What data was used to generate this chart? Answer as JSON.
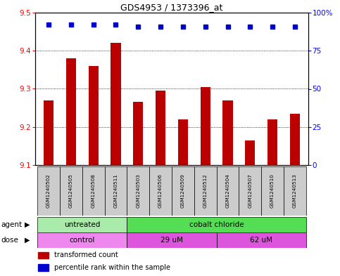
{
  "title": "GDS4953 / 1373396_at",
  "samples": [
    "GSM1240502",
    "GSM1240505",
    "GSM1240508",
    "GSM1240511",
    "GSM1240503",
    "GSM1240506",
    "GSM1240509",
    "GSM1240512",
    "GSM1240504",
    "GSM1240507",
    "GSM1240510",
    "GSM1240513"
  ],
  "bar_values": [
    9.27,
    9.38,
    9.36,
    9.42,
    9.265,
    9.295,
    9.22,
    9.305,
    9.27,
    9.165,
    9.22,
    9.235
  ],
  "percentile_values": [
    92,
    92,
    92,
    92,
    91,
    91,
    91,
    91,
    91,
    91,
    91,
    91
  ],
  "bar_color": "#bb0000",
  "percentile_color": "#0000cc",
  "ylim_left": [
    9.1,
    9.5
  ],
  "ylim_right": [
    0,
    100
  ],
  "yticks_left": [
    9.1,
    9.2,
    9.3,
    9.4,
    9.5
  ],
  "yticks_right": [
    0,
    25,
    50,
    75,
    100
  ],
  "agent_groups": [
    {
      "label": "untreated",
      "start": 0,
      "end": 4,
      "color": "#aaeaaa"
    },
    {
      "label": "cobalt chloride",
      "start": 4,
      "end": 12,
      "color": "#55dd55"
    }
  ],
  "dose_groups": [
    {
      "label": "control",
      "start": 0,
      "end": 4,
      "color": "#ee88ee"
    },
    {
      "label": "29 uM",
      "start": 4,
      "end": 8,
      "color": "#dd55dd"
    },
    {
      "label": "62 uM",
      "start": 8,
      "end": 12,
      "color": "#dd55dd"
    }
  ],
  "legend_items": [
    {
      "label": "transformed count",
      "color": "#bb0000"
    },
    {
      "label": "percentile rank within the sample",
      "color": "#0000cc"
    }
  ],
  "x_label_agent": "agent",
  "x_label_dose": "dose",
  "background_color": "#ffffff",
  "plot_bg_color": "#ffffff",
  "bar_width": 0.45,
  "percentile_marker_size": 5
}
